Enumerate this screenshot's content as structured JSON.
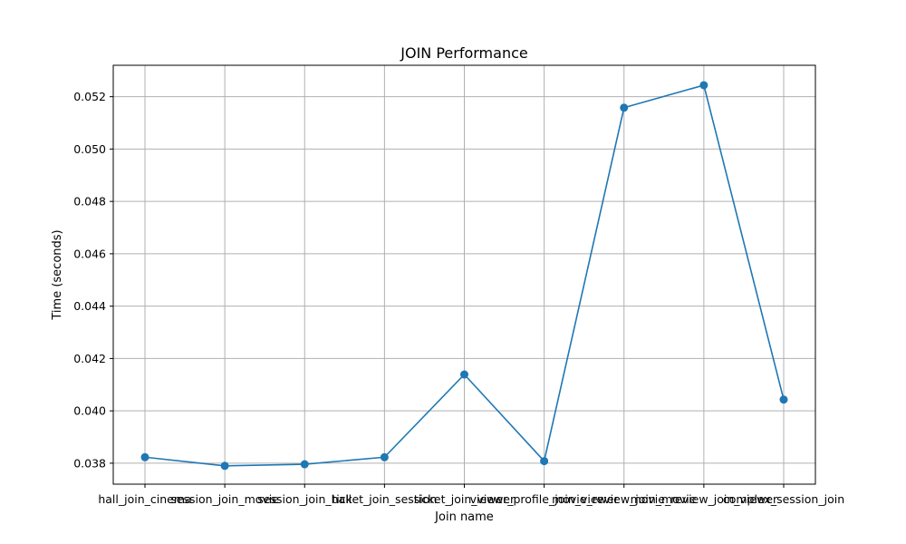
{
  "chart_data": {
    "type": "line",
    "title": "JOIN Performance",
    "xlabel": "Join name",
    "ylabel": "Time (seconds)",
    "categories": [
      "hall_join_cinema",
      "session_join_movie",
      "session_join_hall",
      "ticket_join_session",
      "ticket_join_viewer",
      "viewer_profile_join_viewer",
      "movie_review_join_movie",
      "movie_review_join_viewer",
      "complex_session_join"
    ],
    "values": [
      0.03823,
      0.0379,
      0.03796,
      0.03823,
      0.04139,
      0.03808,
      0.05158,
      0.05244,
      0.04043
    ],
    "ylim": [
      0.0372,
      0.0532
    ],
    "yticks": [
      0.038,
      0.04,
      0.042,
      0.044,
      0.046,
      0.048,
      0.05,
      0.052
    ],
    "ytick_labels": [
      "0.038",
      "0.040",
      "0.042",
      "0.044",
      "0.046",
      "0.048",
      "0.050",
      "0.052"
    ],
    "grid": true,
    "color": "#1f77b4",
    "marker": "circle"
  }
}
